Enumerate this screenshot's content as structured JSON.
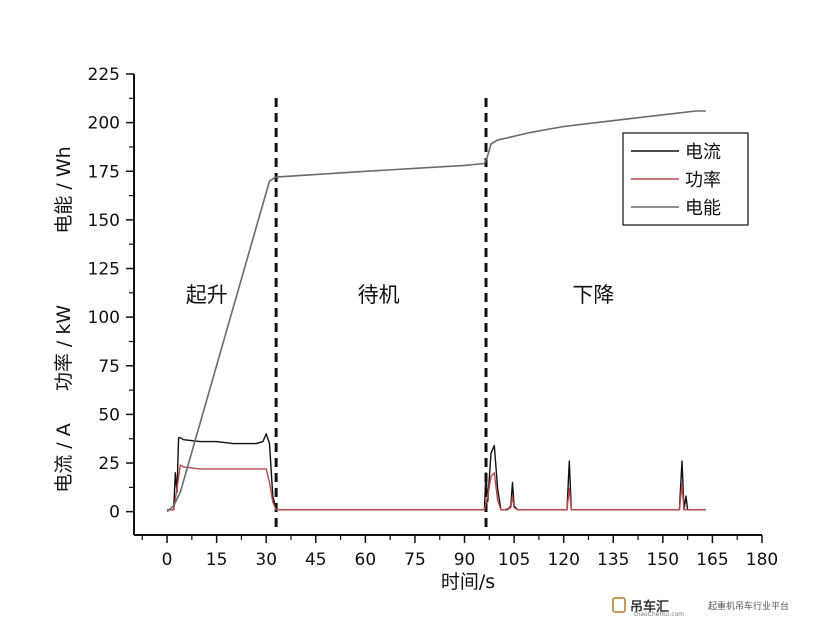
{
  "chart_data": {
    "type": "line",
    "xlabel": "时间/s",
    "ylabels": [
      "电流 / A",
      "功率 / kW",
      "电能 / Wh"
    ],
    "xlim": [
      -10,
      180
    ],
    "ylim": [
      -12,
      225
    ],
    "x_ticks": [
      0,
      15,
      30,
      45,
      60,
      75,
      90,
      105,
      120,
      135,
      150,
      165,
      180
    ],
    "y_ticks": [
      0,
      25,
      50,
      75,
      100,
      125,
      150,
      175,
      200,
      225
    ],
    "grid": false,
    "legend_position": "top-right",
    "dividers": [
      33,
      96.5
    ],
    "phases": [
      {
        "label": "起升",
        "x": 12,
        "y": 112
      },
      {
        "label": "待机",
        "x": 64,
        "y": 112
      },
      {
        "label": "下降",
        "x": 129,
        "y": 112
      }
    ],
    "series": [
      {
        "name": "电流",
        "color": "#111111",
        "x": [
          0,
          2,
          2.5,
          3,
          3.5,
          4,
          5,
          10,
          15,
          20,
          25,
          27,
          29,
          30,
          31,
          32,
          33,
          34,
          40,
          60,
          80,
          95,
          96,
          96.5,
          97,
          98,
          99,
          100,
          101,
          102,
          103,
          104,
          104.5,
          105,
          106,
          110,
          121,
          121.7,
          122.3,
          123,
          130,
          150,
          155,
          155.8,
          156.4,
          157,
          157.5,
          158,
          160,
          163
        ],
        "y": [
          1,
          1,
          20,
          10,
          38,
          38,
          37,
          36,
          36,
          35,
          35,
          35,
          36,
          40,
          35,
          8,
          1,
          1,
          1,
          1,
          1,
          1,
          1,
          20,
          5,
          30,
          34,
          12,
          1,
          1,
          1,
          3,
          15,
          3,
          1,
          1,
          1,
          26,
          1,
          1,
          1,
          1,
          1,
          26,
          1,
          8,
          1,
          1,
          1,
          1
        ]
      },
      {
        "name": "功率",
        "color": "#b84a4a",
        "x": [
          0,
          2,
          3,
          4,
          5,
          10,
          20,
          25,
          30,
          31,
          32,
          33,
          34,
          60,
          96,
          97,
          98,
          99,
          100,
          101,
          102,
          104,
          104.5,
          105,
          106,
          121,
          121.7,
          122.3,
          123,
          155,
          155.8,
          156.4,
          157,
          163
        ],
        "y": [
          1,
          1,
          12,
          24,
          23,
          22,
          22,
          22,
          22,
          15,
          5,
          1,
          1,
          1,
          1,
          8,
          18,
          20,
          6,
          1,
          1,
          2,
          8,
          2,
          1,
          1,
          12,
          1,
          1,
          1,
          14,
          1,
          1,
          1
        ]
      },
      {
        "name": "电能",
        "color": "#6a6a6a",
        "x": [
          0,
          2,
          4,
          31,
          32,
          33,
          60,
          90,
          96,
          97,
          98,
          100,
          110,
          120,
          130,
          140,
          150,
          160,
          163
        ],
        "y": [
          0,
          3,
          10,
          170,
          171,
          172,
          175,
          178,
          179,
          183,
          189,
          191,
          195,
          198,
          200,
          202,
          204,
          206,
          206
        ]
      }
    ]
  },
  "watermark": {
    "brand": "吊车汇",
    "tagline": "起重机吊车行业平台",
    "url": "DiaoCheHui.com",
    "accent_color": "#c49a5a"
  }
}
